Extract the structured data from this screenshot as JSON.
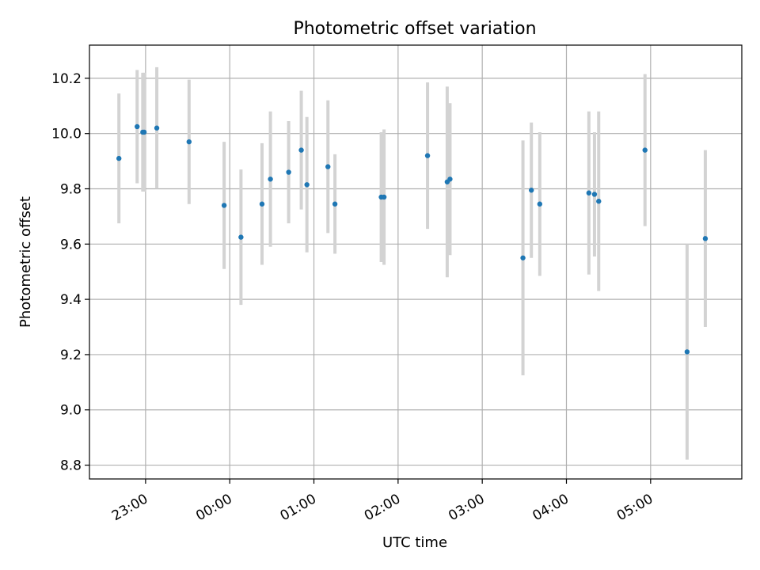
{
  "chart_data": {
    "type": "errorbar",
    "title": "Photometric offset variation",
    "xlabel": "UTC time",
    "ylabel": "Photometric offset",
    "x_unit": "minutes since 00:00 UTC",
    "xlim": [
      -100,
      365
    ],
    "ylim": [
      8.75,
      10.32
    ],
    "grid": true,
    "marker_color": "#1f77b4",
    "errorbar_color": "#d3d3d3",
    "xticks": [
      {
        "value": -60,
        "label": "23:00"
      },
      {
        "value": 0,
        "label": "00:00"
      },
      {
        "value": 60,
        "label": "01:00"
      },
      {
        "value": 120,
        "label": "02:00"
      },
      {
        "value": 180,
        "label": "03:00"
      },
      {
        "value": 240,
        "label": "04:00"
      },
      {
        "value": 300,
        "label": "05:00"
      }
    ],
    "yticks": [
      {
        "value": 8.8,
        "label": "8.8"
      },
      {
        "value": 9.0,
        "label": "9.0"
      },
      {
        "value": 9.2,
        "label": "9.2"
      },
      {
        "value": 9.4,
        "label": "9.4"
      },
      {
        "value": 9.6,
        "label": "9.6"
      },
      {
        "value": 9.8,
        "label": "9.8"
      },
      {
        "value": 10.0,
        "label": "10.0"
      },
      {
        "value": 10.2,
        "label": "10.2"
      }
    ],
    "points": [
      {
        "x": -79,
        "y": 9.91,
        "err": 0.235
      },
      {
        "x": -66,
        "y": 10.025,
        "err": 0.205
      },
      {
        "x": -62,
        "y": 10.005,
        "err": 0.215
      },
      {
        "x": -61,
        "y": 10.005,
        "err": 0.215
      },
      {
        "x": -52,
        "y": 10.02,
        "err": 0.22
      },
      {
        "x": -29,
        "y": 9.97,
        "err": 0.225
      },
      {
        "x": -4,
        "y": 9.74,
        "err": 0.23
      },
      {
        "x": 8,
        "y": 9.625,
        "err": 0.245
      },
      {
        "x": 23,
        "y": 9.745,
        "err": 0.22
      },
      {
        "x": 29,
        "y": 9.835,
        "err": 0.245
      },
      {
        "x": 42,
        "y": 9.86,
        "err": 0.185
      },
      {
        "x": 51,
        "y": 9.94,
        "err": 0.215
      },
      {
        "x": 55,
        "y": 9.815,
        "err": 0.245
      },
      {
        "x": 70,
        "y": 9.88,
        "err": 0.24
      },
      {
        "x": 75,
        "y": 9.745,
        "err": 0.18
      },
      {
        "x": 108,
        "y": 9.77,
        "err": 0.235
      },
      {
        "x": 110,
        "y": 9.77,
        "err": 0.245
      },
      {
        "x": 141,
        "y": 9.92,
        "err": 0.265
      },
      {
        "x": 155,
        "y": 9.825,
        "err": 0.345
      },
      {
        "x": 157,
        "y": 9.835,
        "err": 0.275
      },
      {
        "x": 209,
        "y": 9.55,
        "err": 0.425
      },
      {
        "x": 215,
        "y": 9.795,
        "err": 0.245
      },
      {
        "x": 221,
        "y": 9.745,
        "err": 0.26
      },
      {
        "x": 256,
        "y": 9.785,
        "err": 0.295
      },
      {
        "x": 260,
        "y": 9.78,
        "err": 0.225
      },
      {
        "x": 263,
        "y": 9.755,
        "err": 0.325
      },
      {
        "x": 296,
        "y": 9.94,
        "err": 0.275
      },
      {
        "x": 326,
        "y": 9.21,
        "err": 0.39
      },
      {
        "x": 339,
        "y": 9.62,
        "err": 0.32
      }
    ]
  }
}
